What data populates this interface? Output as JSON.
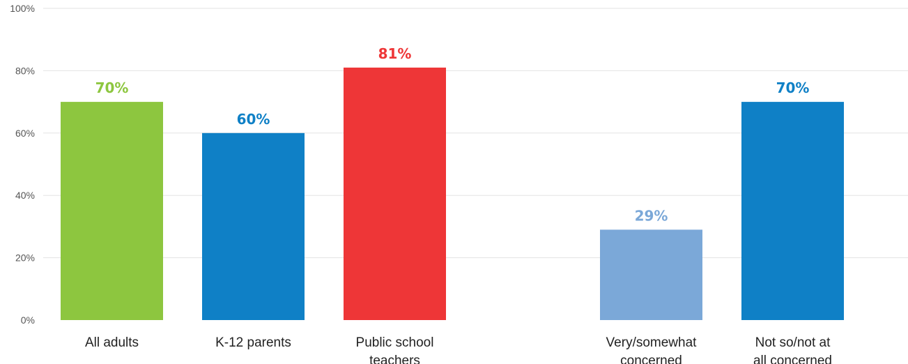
{
  "chart_data": {
    "type": "bar",
    "title": "",
    "xlabel": "",
    "ylabel": "",
    "ylim": [
      0,
      100
    ],
    "yticks": [
      {
        "value": 0,
        "label": "0%"
      },
      {
        "value": 20,
        "label": "20%"
      },
      {
        "value": 40,
        "label": "40%"
      },
      {
        "value": 60,
        "label": "60%"
      },
      {
        "value": 80,
        "label": "80%"
      },
      {
        "value": 100,
        "label": "100%"
      }
    ],
    "grid": true,
    "groups": [
      {
        "bars": [
          {
            "category": "All adults",
            "value": 70,
            "value_label": "70%",
            "color": "#8dc63f"
          },
          {
            "category": "K-12 parents",
            "value": 60,
            "value_label": "60%",
            "color": "#0f80c6"
          },
          {
            "category": "Public school teachers",
            "value": 81,
            "value_label": "81%",
            "color": "#ee3637"
          }
        ]
      },
      {
        "bars": [
          {
            "category": "Very/somewhat concerned",
            "value": 29,
            "value_label": "29%",
            "color": "#7ba8d8"
          },
          {
            "category": "Not so/not at all concerned",
            "value": 70,
            "value_label": "70%",
            "color": "#0f80c6"
          }
        ]
      }
    ]
  }
}
